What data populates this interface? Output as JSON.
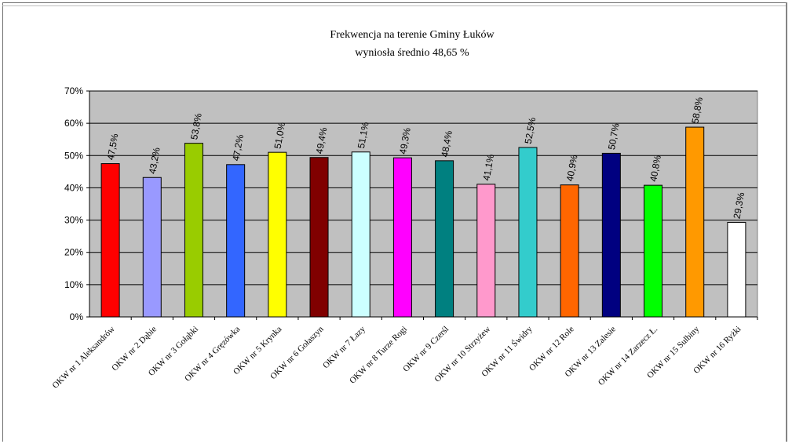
{
  "chart_data": {
    "type": "bar",
    "title": "Frekwencja na terenie Gminy Łuków",
    "subtitle": "wyniosła średnio 48,65 %",
    "xlabel": "",
    "ylabel": "",
    "ylim": [
      0,
      70
    ],
    "yticks": [
      "0%",
      "10%",
      "20%",
      "30%",
      "40%",
      "50%",
      "60%",
      "70%"
    ],
    "grid": true,
    "categories": [
      "OKW nr 1 Aleksandrów",
      "OKW nr 2 Dąbie",
      "OKW nr 3 Gołąbki",
      "OKW nr 4 Gręzówka",
      "OKW nr 5 Krynka",
      "OKW nr 6 Gołaszyn",
      "OKW nr 7 Łazy",
      "OKW nr 8 Turze Rogi",
      "OKW nr 9 Czerśl",
      "OKW nr 10 Strzyżew",
      "OKW nr 11 Świdry",
      "OKW nr 12 Role",
      "OKW nr 13 Zalesie",
      "OKW nr 14 Zarzecz Ł.",
      "OKW nr 15 Sulbiny",
      "OKW nr 16 Ryżki"
    ],
    "values": [
      47.5,
      43.2,
      53.8,
      47.2,
      51.0,
      49.4,
      51.1,
      49.3,
      48.4,
      41.1,
      52.5,
      40.9,
      50.7,
      40.8,
      58.8,
      29.3
    ],
    "labels": [
      "47,5%",
      "43,2%",
      "53,8%",
      "47,2%",
      "51,0%",
      "49,4%",
      "51,1%",
      "49,3%",
      "48,4%",
      "41,1%",
      "52,5%",
      "40,9%",
      "50,7%",
      "40,8%",
      "58,8%",
      "29,3%"
    ],
    "colors": [
      "#ff0000",
      "#9999ff",
      "#99cc00",
      "#3366ff",
      "#ffff00",
      "#800000",
      "#ccffff",
      "#ff00ff",
      "#008080",
      "#ff99cc",
      "#33cccc",
      "#ff6600",
      "#000080",
      "#00ff00",
      "#ff9900",
      "#ffffff"
    ],
    "plot_background": "#c0c0c0"
  }
}
